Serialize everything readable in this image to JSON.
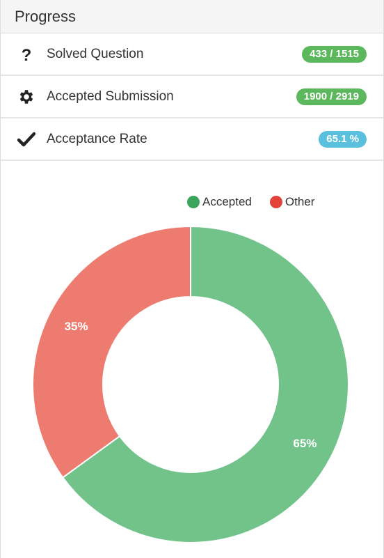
{
  "header": {
    "title": "Progress"
  },
  "stats": [
    {
      "icon": "question-icon",
      "label": "Solved Question",
      "value": "433 / 1515",
      "color": "#5cb85c"
    },
    {
      "icon": "gear-icon",
      "label": "Accepted Submission",
      "value": "1900 / 2919",
      "color": "#5cb85c"
    },
    {
      "icon": "check-icon",
      "label": "Acceptance Rate",
      "value": "65.1 %",
      "color": "#5bc0de"
    }
  ],
  "chart_data": {
    "type": "pie",
    "categories": [
      "Accepted",
      "Other"
    ],
    "values": [
      65,
      35
    ],
    "labels": [
      "65%",
      "35%"
    ],
    "colors": [
      "#72c38a",
      "#ee7b70"
    ],
    "legend_colors": [
      "#3ba55c",
      "#e2433a"
    ],
    "legend_position": "top-right",
    "donut": true
  }
}
